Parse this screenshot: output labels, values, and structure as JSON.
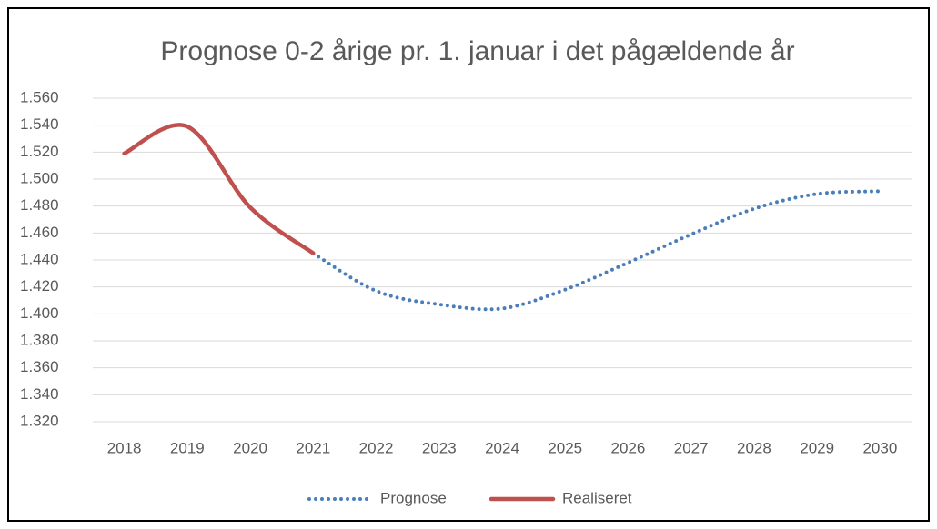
{
  "chart_data": {
    "type": "line",
    "title": "Prognose 0-2 årige pr. 1. januar i det pågældende år",
    "categories": [
      "2018",
      "2019",
      "2020",
      "2021",
      "2022",
      "2023",
      "2024",
      "2025",
      "2026",
      "2027",
      "2028",
      "2029",
      "2030"
    ],
    "series": [
      {
        "name": "Prognose",
        "color": "#4a7ebb",
        "style": "dotted",
        "values": [
          null,
          null,
          null,
          1445,
          1417,
          1407,
          1404,
          1418,
          1438,
          1459,
          1478,
          1489,
          1491
        ]
      },
      {
        "name": "Realiseret",
        "color": "#c0504d",
        "style": "solid",
        "values": [
          1519,
          1539,
          1479,
          1445,
          null,
          null,
          null,
          null,
          null,
          null,
          null,
          null,
          null
        ]
      }
    ],
    "ylim": [
      1320,
      1560
    ],
    "yticks": [
      {
        "value": 1320,
        "label": "1.320"
      },
      {
        "value": 1340,
        "label": "1.340"
      },
      {
        "value": 1360,
        "label": "1.360"
      },
      {
        "value": 1380,
        "label": "1.380"
      },
      {
        "value": 1400,
        "label": "1.400"
      },
      {
        "value": 1420,
        "label": "1.420"
      },
      {
        "value": 1440,
        "label": "1.440"
      },
      {
        "value": 1460,
        "label": "1.460"
      },
      {
        "value": 1480,
        "label": "1.480"
      },
      {
        "value": 1500,
        "label": "1.500"
      },
      {
        "value": 1520,
        "label": "1.520"
      },
      {
        "value": 1540,
        "label": "1.540"
      },
      {
        "value": 1560,
        "label": "1.560"
      }
    ],
    "grid": true,
    "legend": "bottom"
  }
}
